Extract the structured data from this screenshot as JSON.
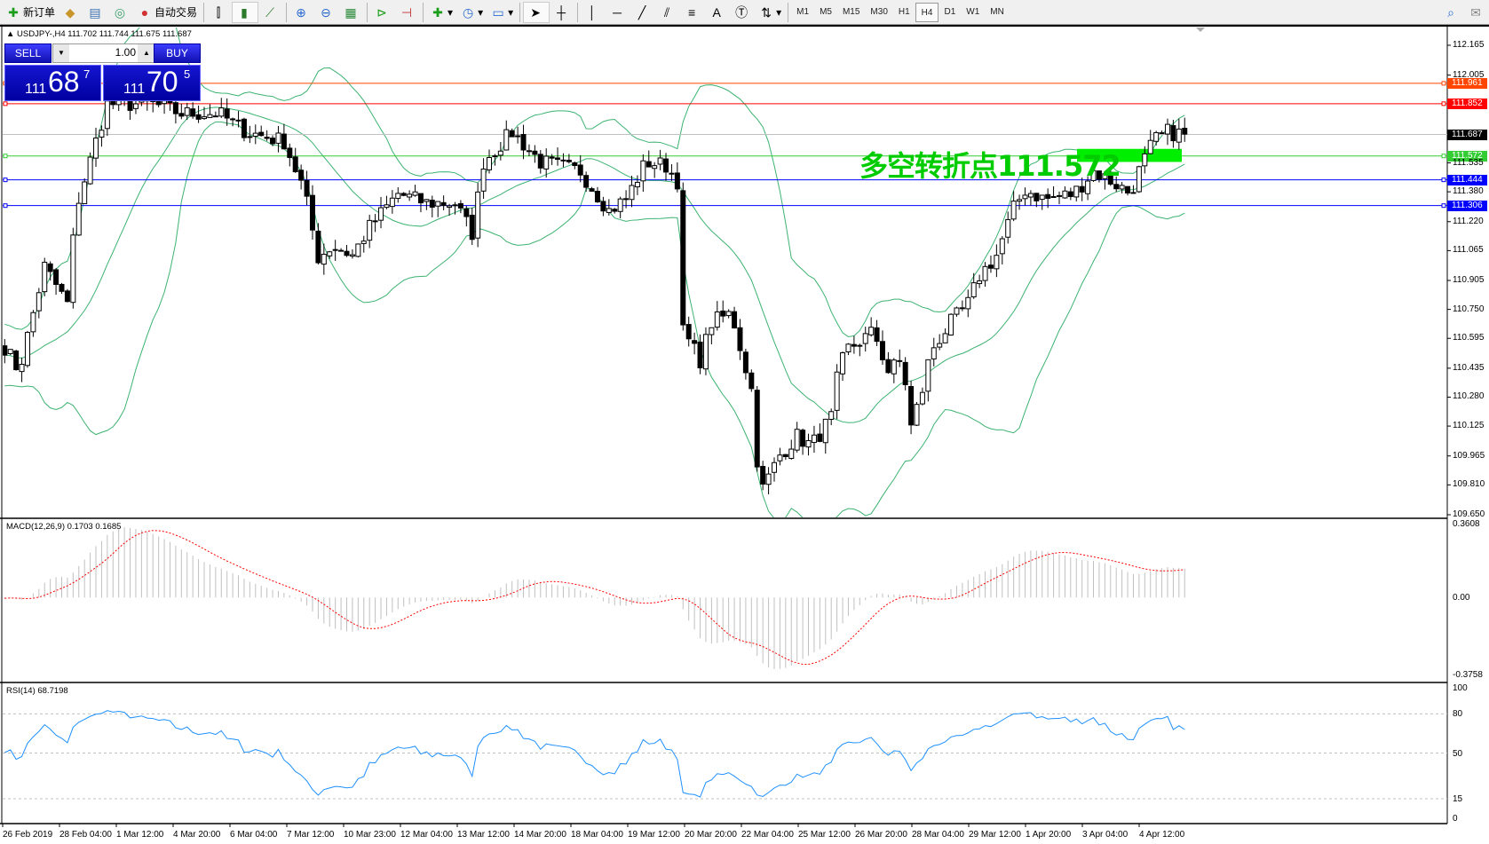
{
  "toolbar": {
    "new_order": "新订单",
    "auto_trading": "自动交易",
    "icons": [
      "new-order-icon",
      "market-watch-icon",
      "navigator-icon",
      "signals-icon",
      "auto-trading-icon",
      "bar-chart-icon",
      "candlestick-icon",
      "line-chart-icon",
      "zoom-in-icon",
      "zoom-out-icon",
      "tile-windows-icon",
      "chart-shift-icon",
      "autoscroll-icon",
      "indicators-icon",
      "periods-icon",
      "templates-icon",
      "cursor-icon",
      "crosshair-icon",
      "vertical-line-icon",
      "horizontal-line-icon",
      "trendline-icon",
      "equidistant-channel-icon",
      "fibonacci-icon",
      "text-icon",
      "text-label-icon",
      "arrows-icon"
    ],
    "timeframes": [
      "M1",
      "M5",
      "M15",
      "M30",
      "H1",
      "H4",
      "D1",
      "W1",
      "MN"
    ],
    "active_timeframe": "H4"
  },
  "chart": {
    "header": "USDJPY-,H4  111.702 111.744 111.675 111.687",
    "one_click": {
      "sell": "SELL",
      "buy": "BUY",
      "volume": "1.00",
      "bid_big": "111",
      "bid_main": "68",
      "bid_pip": "7",
      "ask_big": "111",
      "ask_main": "70",
      "ask_pip": "5"
    },
    "annotation": "多空转折点111.572",
    "price_ticks": [
      "112.165",
      "112.005",
      "111.535",
      "111.380",
      "111.220",
      "111.065",
      "110.905",
      "110.750",
      "110.595",
      "110.435",
      "110.280",
      "110.125",
      "109.965",
      "109.810",
      "109.650"
    ],
    "levels": [
      {
        "price": 111.961,
        "label": "111.961",
        "color": "#FF4500"
      },
      {
        "price": 111.852,
        "label": "111.852",
        "color": "#FF0000"
      },
      {
        "price": 111.687,
        "label": "111.687",
        "color": "#000000",
        "line": "#C0C0C0"
      },
      {
        "price": 111.572,
        "label": "111.572",
        "color": "#32CD32"
      },
      {
        "price": 111.444,
        "label": "111.444",
        "color": "#0000FF"
      },
      {
        "price": 111.306,
        "label": "111.306",
        "color": "#0000FF"
      }
    ],
    "bollinger_color": "#3CB371",
    "close_keypoints": [
      [
        0,
        110.55
      ],
      [
        2.5,
        110.42
      ],
      [
        5,
        110.73
      ],
      [
        7,
        110.98
      ],
      [
        11,
        110.78
      ],
      [
        12.5,
        111.29
      ],
      [
        16,
        111.65
      ],
      [
        18,
        111.85
      ],
      [
        26,
        111.85
      ],
      [
        31,
        111.8
      ],
      [
        37.5,
        111.8
      ],
      [
        42.5,
        111.7
      ],
      [
        49,
        111.65
      ],
      [
        52.5,
        111.39
      ],
      [
        55,
        111.03
      ],
      [
        57.5,
        111.09
      ],
      [
        61,
        111.04
      ],
      [
        64,
        111.19
      ],
      [
        69,
        111.37
      ],
      [
        74,
        111.32
      ],
      [
        79,
        111.32
      ],
      [
        82,
        111.16
      ],
      [
        84,
        111.54
      ],
      [
        89,
        111.7
      ],
      [
        94,
        111.54
      ],
      [
        101,
        111.49
      ],
      [
        106,
        111.28
      ],
      [
        109,
        111.34
      ],
      [
        112.5,
        111.54
      ],
      [
        116,
        111.52
      ],
      [
        118,
        111.44
      ],
      [
        119,
        110.63
      ],
      [
        122,
        110.48
      ],
      [
        124,
        110.68
      ],
      [
        127.5,
        110.73
      ],
      [
        131,
        110.32
      ],
      [
        132.5,
        109.76
      ],
      [
        136,
        109.97
      ],
      [
        139,
        110.07
      ],
      [
        141.5,
        110.02
      ],
      [
        145,
        110.17
      ],
      [
        146,
        110.37
      ],
      [
        147.5,
        110.53
      ],
      [
        152.5,
        110.63
      ],
      [
        155,
        110.42
      ],
      [
        157.5,
        110.48
      ],
      [
        159,
        110.12
      ],
      [
        161,
        110.32
      ],
      [
        162.5,
        110.53
      ],
      [
        166,
        110.68
      ],
      [
        169,
        110.78
      ],
      [
        171,
        110.93
      ],
      [
        174,
        111.04
      ],
      [
        177,
        111.29
      ],
      [
        179,
        111.39
      ],
      [
        182.5,
        111.34
      ],
      [
        187.5,
        111.37
      ],
      [
        191,
        111.49
      ],
      [
        194,
        111.44
      ],
      [
        197.5,
        111.37
      ],
      [
        199,
        111.49
      ],
      [
        201.5,
        111.65
      ],
      [
        204,
        111.7
      ],
      [
        207.5,
        111.687
      ]
    ],
    "time_labels": [
      "26 Feb 2019",
      "28 Feb 04:00",
      "1 Mar 12:00",
      "4 Mar 20:00",
      "6 Mar 04:00",
      "7 Mar 12:00",
      "10 Mar 23:00",
      "12 Mar 04:00",
      "13 Mar 12:00",
      "14 Mar 20:00",
      "18 Mar 04:00",
      "19 Mar 12:00",
      "20 Mar 20:00",
      "22 Mar 04:00",
      "25 Mar 12:00",
      "26 Mar 20:00",
      "28 Mar 04:00",
      "29 Mar 12:00",
      "1 Apr 20:00",
      "3 Apr 04:00",
      "4 Apr 12:00"
    ]
  },
  "macd": {
    "label": "MACD(12,26,9) 0.1703 0.1685",
    "ticks": [
      "0.3608",
      "0.00",
      "-0.3758"
    ],
    "signal_color": "#FF0000",
    "hist_color": "#C0C0C0"
  },
  "rsi": {
    "label": "RSI(14) 68.7198",
    "ticks": [
      "100",
      "80",
      "50",
      "15",
      "0"
    ],
    "line_color": "#1E90FF"
  }
}
